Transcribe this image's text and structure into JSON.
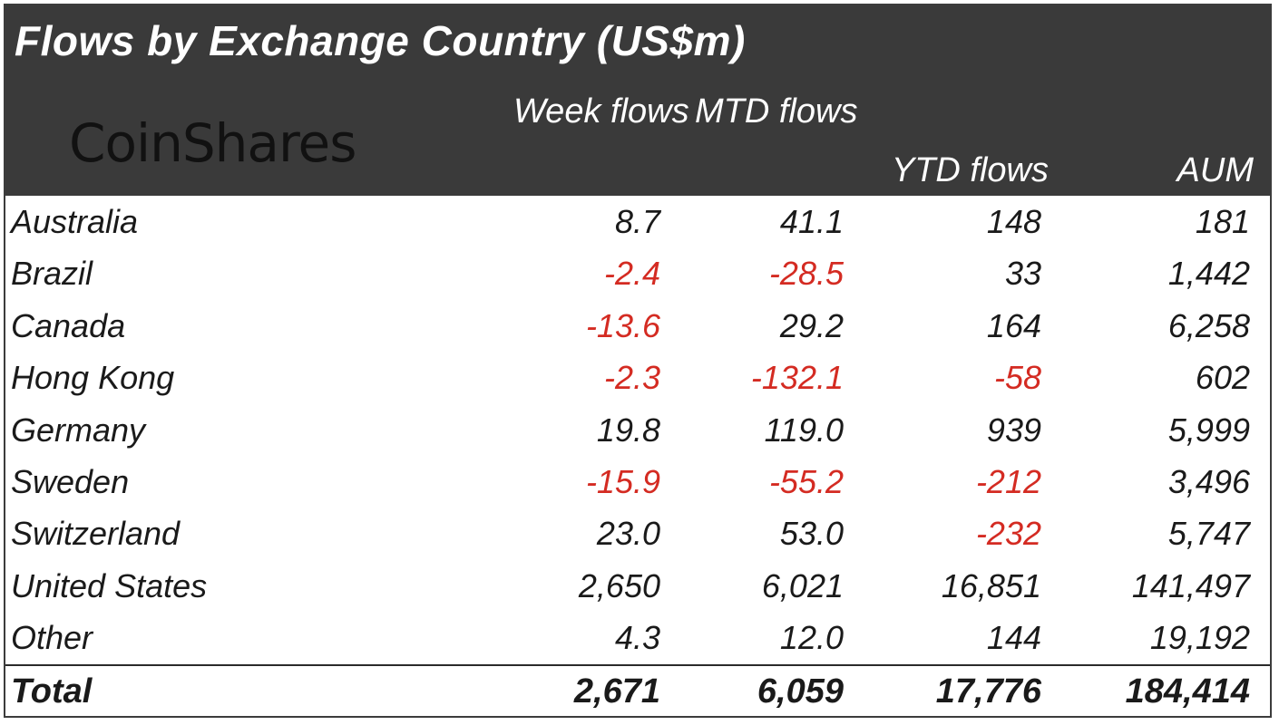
{
  "title": "Flows by Exchange Country (US$m)",
  "logo": "CoinShares",
  "columns": {
    "week": "Week flows",
    "mtd": "MTD flows",
    "ytd": "YTD flows",
    "aum": "AUM"
  },
  "rows": [
    {
      "country": "Australia",
      "week": "8.7",
      "mtd": "41.1",
      "ytd": "148",
      "aum": "181"
    },
    {
      "country": "Brazil",
      "week": "-2.4",
      "mtd": "-28.5",
      "ytd": "33",
      "aum": "1,442"
    },
    {
      "country": "Canada",
      "week": "-13.6",
      "mtd": "29.2",
      "ytd": "164",
      "aum": "6,258"
    },
    {
      "country": "Hong Kong",
      "week": "-2.3",
      "mtd": "-132.1",
      "ytd": "-58",
      "aum": "602"
    },
    {
      "country": "Germany",
      "week": "19.8",
      "mtd": "119.0",
      "ytd": "939",
      "aum": "5,999"
    },
    {
      "country": "Sweden",
      "week": "-15.9",
      "mtd": "-55.2",
      "ytd": "-212",
      "aum": "3,496"
    },
    {
      "country": "Switzerland",
      "week": "23.0",
      "mtd": "53.0",
      "ytd": "-232",
      "aum": "5,747"
    },
    {
      "country": "United States",
      "week": "2,650",
      "mtd": "6,021",
      "ytd": "16,851",
      "aum": "141,497"
    },
    {
      "country": "Other",
      "week": "4.3",
      "mtd": "12.0",
      "ytd": "144",
      "aum": "19,192"
    }
  ],
  "total": {
    "label": "Total",
    "week": "2,671",
    "mtd": "6,059",
    "ytd": "17,776",
    "aum": "184,414"
  },
  "colors": {
    "header_bg": "#3a3a3a",
    "negative": "#d42b22",
    "text": "#1a1a1a"
  },
  "chart_data": {
    "type": "table",
    "title": "Flows by Exchange Country (US$m)",
    "columns": [
      "",
      "Week flows",
      "MTD flows",
      "YTD flows",
      "AUM"
    ],
    "rows": [
      [
        "Australia",
        8.7,
        41.1,
        148,
        181
      ],
      [
        "Brazil",
        -2.4,
        -28.5,
        33,
        1442
      ],
      [
        "Canada",
        -13.6,
        29.2,
        164,
        6258
      ],
      [
        "Hong Kong",
        -2.3,
        -132.1,
        -58,
        602
      ],
      [
        "Germany",
        19.8,
        119.0,
        939,
        5999
      ],
      [
        "Sweden",
        -15.9,
        -55.2,
        -212,
        3496
      ],
      [
        "Switzerland",
        23.0,
        53.0,
        -232,
        5747
      ],
      [
        "United States",
        2650,
        6021,
        16851,
        141497
      ],
      [
        "Other",
        4.3,
        12.0,
        144,
        19192
      ],
      [
        "Total",
        2671,
        6059,
        17776,
        184414
      ]
    ]
  }
}
